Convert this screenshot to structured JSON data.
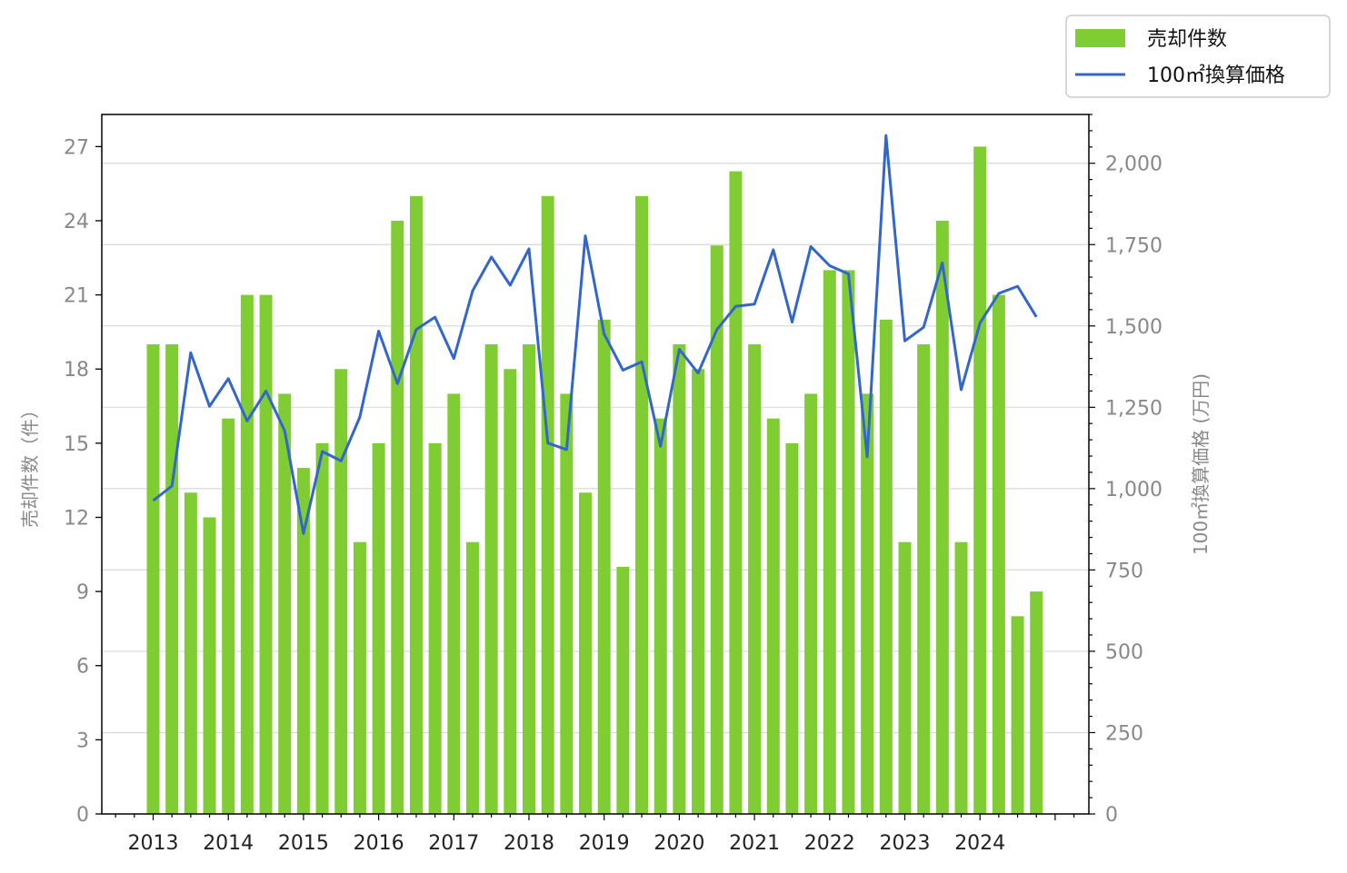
{
  "chart_data": {
    "type": "bar+line",
    "legend": {
      "position": "top-right",
      "entries": [
        {
          "label": "売却件数",
          "kind": "bar",
          "color": "#80cc33"
        },
        {
          "label": "100㎡換算価格",
          "kind": "line",
          "color": "#3366cc"
        }
      ]
    },
    "x_tick_labels": [
      "2013",
      "2014",
      "2015",
      "2016",
      "2017",
      "2018",
      "2019",
      "2020",
      "2021",
      "2022",
      "2023",
      "2024"
    ],
    "x_start_year": 2013,
    "x_quarters_per_year": 4,
    "y_left": {
      "label": "売却件数（件）",
      "ylim": [
        0,
        28.3
      ],
      "ticks": [
        0,
        3,
        6,
        9,
        12,
        15,
        18,
        21,
        24,
        27
      ],
      "tick_labels": [
        "0",
        "3",
        "6",
        "9",
        "12",
        "15",
        "18",
        "21",
        "24",
        "27"
      ]
    },
    "y_right": {
      "label": "100㎡換算価格 (万円)",
      "ylim": [
        0,
        2150
      ],
      "ticks": [
        0,
        250,
        500,
        750,
        1000,
        1250,
        1500,
        1750,
        2000
      ],
      "tick_labels": [
        "0",
        "250",
        "500",
        "750",
        "1,000",
        "1,250",
        "1,500",
        "1,750",
        "2,000"
      ]
    },
    "grid": "horizontal (right axis)",
    "series": [
      {
        "name": "売却件数",
        "type": "bar",
        "axis": "left",
        "color": "#80cc33",
        "values": [
          19,
          19,
          13,
          12,
          16,
          21,
          21,
          17,
          14,
          15,
          18,
          11,
          15,
          24,
          25,
          15,
          17,
          11,
          19,
          18,
          19,
          25,
          17,
          13,
          20,
          10,
          25,
          16,
          19,
          18,
          23,
          26,
          19,
          16,
          15,
          17,
          22,
          22,
          17,
          20,
          11,
          19,
          24,
          11,
          27,
          21,
          8,
          9
        ]
      },
      {
        "name": "100㎡換算価格",
        "type": "line",
        "axis": "right",
        "color": "#3366cc",
        "values": [
          963,
          1008,
          1418,
          1253,
          1338,
          1208,
          1300,
          1178,
          862,
          1114,
          1085,
          1220,
          1484,
          1323,
          1489,
          1527,
          1400,
          1608,
          1712,
          1625,
          1737,
          1140,
          1120,
          1777,
          1475,
          1364,
          1390,
          1130,
          1428,
          1355,
          1489,
          1560,
          1567,
          1734,
          1512,
          1744,
          1685,
          1660,
          1098,
          2085,
          1454,
          1496,
          1694,
          1304,
          1509,
          1600,
          1622,
          1528
        ]
      }
    ]
  }
}
